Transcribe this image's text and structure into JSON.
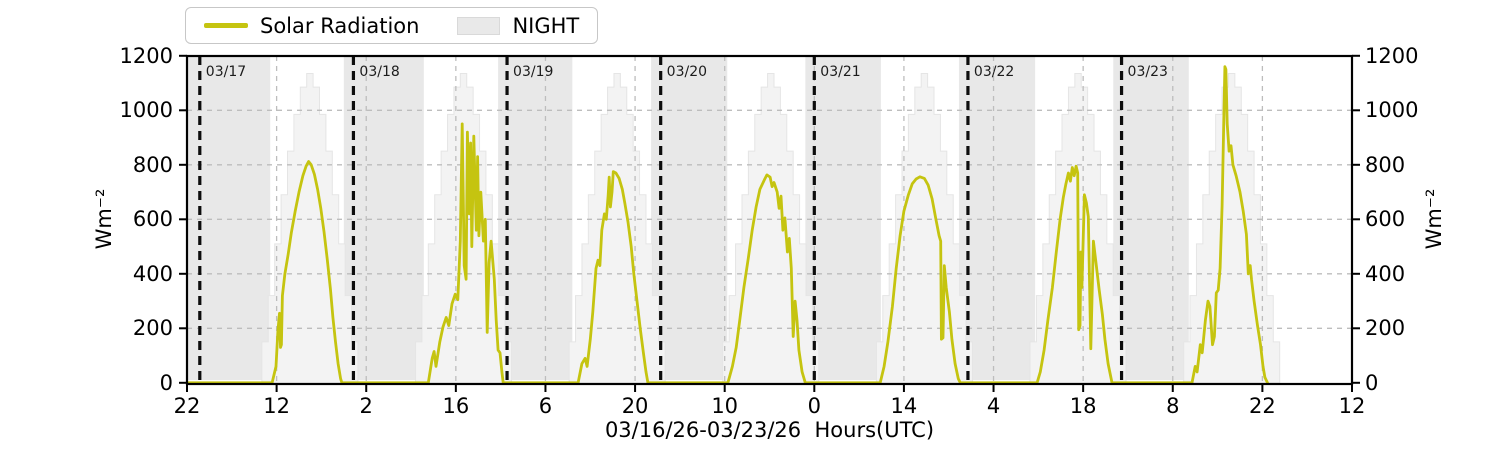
{
  "legend": {
    "items": [
      {
        "label": "Solar Radiation",
        "swatch": "line",
        "color": "#c5c410",
        "edge": "#c5c410"
      },
      {
        "label": "NIGHT",
        "swatch": "patch",
        "color": "#e9e9e9",
        "edge": "#d9d9d9"
      }
    ]
  },
  "axes": {
    "xlabel": "03/16/26-03/23/26  Hours(UTC)",
    "ylabel_left": "Wm⁻²",
    "ylabel_right": "Wm⁻²",
    "ylim": [
      0,
      1200
    ],
    "ytick_values": [
      0,
      200,
      400,
      600,
      800,
      1000,
      1200
    ],
    "xtick_labels": [
      "22",
      "12",
      "2",
      "16",
      "6",
      "20",
      "10",
      "0",
      "14",
      "4",
      "18",
      "8",
      "22",
      "12"
    ],
    "xtick_hours": [
      0,
      14,
      28,
      42,
      56,
      70,
      84,
      98,
      112,
      126,
      140,
      154,
      168,
      182
    ],
    "x_span_hours": [
      0,
      182
    ]
  },
  "chart_data": {
    "type": "line",
    "title": "",
    "x_units": "hours since 03/16/26 22:00 UTC",
    "y_units": "W/m^2",
    "grid": {
      "color": "#bdbdbd",
      "dash": [
        5,
        5
      ],
      "width": 1.3
    },
    "boundary_line": {
      "color": "#0d0d0d",
      "dash": [
        9,
        6
      ],
      "width": 3.2
    },
    "day_boundaries": [
      {
        "label": "03/17",
        "hour": 2
      },
      {
        "label": "03/18",
        "hour": 26
      },
      {
        "label": "03/19",
        "hour": 50
      },
      {
        "label": "03/20",
        "hour": 74
      },
      {
        "label": "03/21",
        "hour": 98
      },
      {
        "label": "03/22",
        "hour": 122
      },
      {
        "label": "03/23",
        "hour": 146
      }
    ],
    "night_bands_hours": [
      [
        0,
        13.0
      ],
      [
        24.5,
        37.0
      ],
      [
        48.6,
        60.2
      ],
      [
        72.5,
        84.4
      ],
      [
        96.6,
        108.4
      ],
      [
        120.6,
        132.5
      ],
      [
        144.7,
        156.5
      ]
    ],
    "night_color": "#e8e8e8",
    "clear_sky_steps": {
      "color": "#f3f3f3",
      "edge": "#e5e5e5",
      "step_hours": 1,
      "heights": [
        150,
        320,
        510,
        690,
        850,
        985,
        1085,
        1135,
        1085,
        985,
        850,
        690,
        510,
        320,
        150
      ],
      "centers_hours": [
        19.2,
        43.2,
        67.2,
        91.2,
        115.2,
        139.2,
        163.2
      ]
    },
    "series": [
      {
        "name": "Solar Radiation",
        "color": "#c5c410",
        "width": 2.8,
        "points": [
          [
            0,
            0
          ],
          [
            13.3,
            0
          ],
          [
            13.9,
            60
          ],
          [
            14.2,
            190
          ],
          [
            14.45,
            255
          ],
          [
            14.6,
            130
          ],
          [
            14.75,
            140
          ],
          [
            14.9,
            320
          ],
          [
            15.3,
            400
          ],
          [
            15.8,
            470
          ],
          [
            16.3,
            550
          ],
          [
            16.9,
            630
          ],
          [
            17.5,
            700
          ],
          [
            18.1,
            760
          ],
          [
            18.6,
            795
          ],
          [
            19.0,
            812
          ],
          [
            19.4,
            800
          ],
          [
            19.9,
            765
          ],
          [
            20.4,
            710
          ],
          [
            20.9,
            640
          ],
          [
            21.4,
            555
          ],
          [
            21.9,
            455
          ],
          [
            22.4,
            345
          ],
          [
            22.8,
            240
          ],
          [
            23.2,
            150
          ],
          [
            23.6,
            70
          ],
          [
            24.0,
            15
          ],
          [
            24.2,
            0
          ],
          [
            37.7,
            0
          ],
          [
            38.3,
            90
          ],
          [
            38.6,
            115
          ],
          [
            38.9,
            60
          ],
          [
            39.5,
            150
          ],
          [
            40.0,
            205
          ],
          [
            40.5,
            240
          ],
          [
            40.9,
            210
          ],
          [
            41.4,
            290
          ],
          [
            41.9,
            325
          ],
          [
            42.3,
            305
          ],
          [
            42.7,
            520
          ],
          [
            43.0,
            950
          ],
          [
            43.15,
            700
          ],
          [
            43.3,
            430
          ],
          [
            43.6,
            380
          ],
          [
            43.8,
            920
          ],
          [
            44.1,
            620
          ],
          [
            44.3,
            880
          ],
          [
            44.5,
            500
          ],
          [
            44.8,
            905
          ],
          [
            45.2,
            560
          ],
          [
            45.4,
            830
          ],
          [
            45.6,
            540
          ],
          [
            45.9,
            700
          ],
          [
            46.3,
            520
          ],
          [
            46.6,
            600
          ],
          [
            46.9,
            185
          ],
          [
            47.2,
            440
          ],
          [
            47.5,
            520
          ],
          [
            48.0,
            380
          ],
          [
            48.3,
            230
          ],
          [
            48.6,
            120
          ],
          [
            48.9,
            110
          ],
          [
            49.2,
            40
          ],
          [
            49.4,
            0
          ],
          [
            61.1,
            0
          ],
          [
            61.7,
            70
          ],
          [
            62.2,
            90
          ],
          [
            62.5,
            60
          ],
          [
            63.0,
            160
          ],
          [
            63.4,
            260
          ],
          [
            63.9,
            420
          ],
          [
            64.2,
            450
          ],
          [
            64.5,
            430
          ],
          [
            64.8,
            560
          ],
          [
            65.2,
            620
          ],
          [
            65.5,
            600
          ],
          [
            65.8,
            690
          ],
          [
            65.95,
            755
          ],
          [
            66.15,
            645
          ],
          [
            66.4,
            700
          ],
          [
            66.6,
            775
          ],
          [
            67.0,
            770
          ],
          [
            67.5,
            750
          ],
          [
            68.0,
            710
          ],
          [
            68.4,
            660
          ],
          [
            68.9,
            590
          ],
          [
            69.4,
            500
          ],
          [
            69.8,
            400
          ],
          [
            70.3,
            300
          ],
          [
            70.8,
            200
          ],
          [
            71.3,
            110
          ],
          [
            71.7,
            40
          ],
          [
            72.0,
            0
          ],
          [
            84.5,
            0
          ],
          [
            85.2,
            60
          ],
          [
            85.8,
            130
          ],
          [
            86.4,
            240
          ],
          [
            87.0,
            350
          ],
          [
            87.7,
            460
          ],
          [
            88.3,
            560
          ],
          [
            88.9,
            645
          ],
          [
            89.5,
            710
          ],
          [
            90.2,
            745
          ],
          [
            90.6,
            763
          ],
          [
            91.1,
            755
          ],
          [
            91.4,
            720
          ],
          [
            91.7,
            735
          ],
          [
            92.2,
            700
          ],
          [
            92.5,
            640
          ],
          [
            92.8,
            685
          ],
          [
            93.1,
            560
          ],
          [
            93.4,
            605
          ],
          [
            93.8,
            480
          ],
          [
            94.1,
            530
          ],
          [
            94.4,
            420
          ],
          [
            94.7,
            170
          ],
          [
            95.0,
            300
          ],
          [
            95.3,
            230
          ],
          [
            95.6,
            120
          ],
          [
            96.1,
            40
          ],
          [
            96.6,
            0
          ],
          [
            108.3,
            0
          ],
          [
            108.9,
            60
          ],
          [
            109.5,
            150
          ],
          [
            110.2,
            280
          ],
          [
            110.8,
            420
          ],
          [
            111.4,
            540
          ],
          [
            112.0,
            630
          ],
          [
            112.7,
            690
          ],
          [
            113.3,
            730
          ],
          [
            113.9,
            748
          ],
          [
            114.5,
            756
          ],
          [
            115.2,
            750
          ],
          [
            115.8,
            725
          ],
          [
            116.4,
            675
          ],
          [
            117.0,
            600
          ],
          [
            117.5,
            540
          ],
          [
            117.75,
            520
          ],
          [
            117.85,
            160
          ],
          [
            118.1,
            165
          ],
          [
            118.3,
            430
          ],
          [
            118.6,
            350
          ],
          [
            119.1,
            260
          ],
          [
            119.5,
            160
          ],
          [
            120.0,
            70
          ],
          [
            120.5,
            15
          ],
          [
            120.8,
            0
          ],
          [
            132.8,
            0
          ],
          [
            133.3,
            40
          ],
          [
            133.9,
            120
          ],
          [
            134.5,
            230
          ],
          [
            135.2,
            350
          ],
          [
            135.8,
            480
          ],
          [
            136.4,
            600
          ],
          [
            136.9,
            680
          ],
          [
            137.3,
            730
          ],
          [
            137.7,
            770
          ],
          [
            138.0,
            740
          ],
          [
            138.3,
            790
          ],
          [
            138.6,
            760
          ],
          [
            138.9,
            795
          ],
          [
            139.15,
            770
          ],
          [
            139.3,
            195
          ],
          [
            139.5,
            210
          ],
          [
            139.65,
            480
          ],
          [
            139.8,
            350
          ],
          [
            140.2,
            690
          ],
          [
            140.5,
            660
          ],
          [
            140.8,
            610
          ],
          [
            141.2,
            125
          ],
          [
            141.6,
            520
          ],
          [
            142.0,
            440
          ],
          [
            142.5,
            340
          ],
          [
            143.0,
            250
          ],
          [
            143.4,
            160
          ],
          [
            143.9,
            70
          ],
          [
            144.5,
            0
          ],
          [
            157.0,
            0
          ],
          [
            157.5,
            60
          ],
          [
            157.8,
            40
          ],
          [
            158.3,
            140
          ],
          [
            158.6,
            110
          ],
          [
            159.1,
            230
          ],
          [
            159.5,
            300
          ],
          [
            159.8,
            280
          ],
          [
            160.2,
            140
          ],
          [
            160.5,
            170
          ],
          [
            160.8,
            330
          ],
          [
            161.1,
            340
          ],
          [
            161.4,
            420
          ],
          [
            161.7,
            650
          ],
          [
            162.0,
            1000
          ],
          [
            162.15,
            1160
          ],
          [
            162.3,
            1150
          ],
          [
            162.5,
            950
          ],
          [
            162.8,
            850
          ],
          [
            163.1,
            870
          ],
          [
            163.4,
            800
          ],
          [
            163.9,
            760
          ],
          [
            164.5,
            700
          ],
          [
            165.0,
            630
          ],
          [
            165.5,
            545
          ],
          [
            165.8,
            400
          ],
          [
            166.1,
            430
          ],
          [
            166.3,
            380
          ],
          [
            166.7,
            300
          ],
          [
            167.2,
            215
          ],
          [
            167.7,
            140
          ],
          [
            168.1,
            60
          ],
          [
            168.4,
            20
          ],
          [
            168.8,
            0
          ]
        ]
      }
    ]
  }
}
